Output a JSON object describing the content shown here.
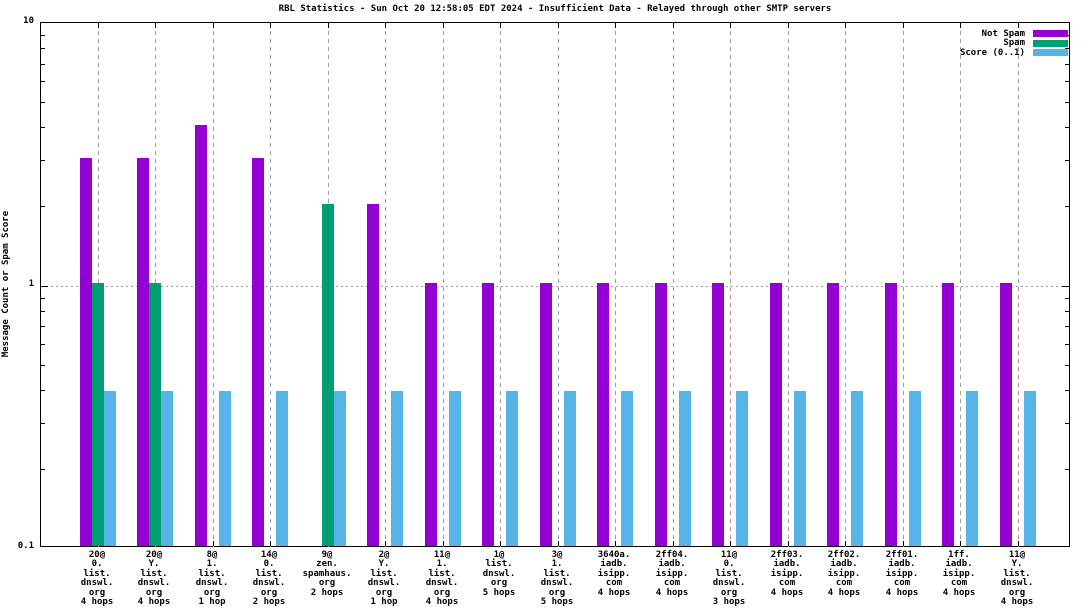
{
  "title": "RBL Statistics - Sun Oct 20 12:58:05 EDT 2024 - Insufficient Data - Relayed through other SMTP servers",
  "chart_data": {
    "type": "bar",
    "title": "RBL Statistics - Sun Oct 20 12:58:05 EDT 2024 - Insufficient Data - Relayed through other SMTP servers",
    "ylabel": "Message Count or Spam Score",
    "xlabel": "",
    "y_scale": "log",
    "ylim": [
      0.1,
      10
    ],
    "y_major_ticks": [
      0.1,
      1,
      10
    ],
    "y_major_tick_labels": [
      "0.1",
      "1",
      "10"
    ],
    "y_minor_ticks": [
      0.2,
      0.3,
      0.4,
      0.5,
      0.6,
      0.7,
      0.8,
      0.9,
      2,
      3,
      4,
      5,
      6,
      7,
      8,
      9
    ],
    "grid_vertical_per_category": true,
    "grid_horizontal_at": [
      1
    ],
    "legend_position": "top-right",
    "legend": [
      {
        "label": "Not Spam",
        "color": "#9400d3"
      },
      {
        "label": "Spam",
        "color": "#009e73"
      },
      {
        "label": "Score (0..1)",
        "color": "#56b4e9"
      }
    ],
    "categories": [
      [
        "20@",
        "0.",
        "list.",
        "dnswl.",
        "org",
        "4 hops"
      ],
      [
        "20@",
        "Y.",
        "list.",
        "dnswl.",
        "org",
        "4 hops"
      ],
      [
        "8@",
        "1.",
        "list.",
        "dnswl.",
        "org",
        "1 hop"
      ],
      [
        "14@",
        "0.",
        "list.",
        "dnswl.",
        "org",
        "2 hops"
      ],
      [
        "9@",
        "zen.",
        "spamhaus.",
        "org",
        "2 hops"
      ],
      [
        "2@",
        "Y.",
        "list.",
        "dnswl.",
        "org",
        "1 hop"
      ],
      [
        "11@",
        "1.",
        "list.",
        "dnswl.",
        "org",
        "4 hops"
      ],
      [
        "1@",
        "list.",
        "dnswl.",
        "org",
        "5 hops"
      ],
      [
        "3@",
        "1.",
        "list.",
        "dnswl.",
        "org",
        "5 hops"
      ],
      [
        "3640a.",
        "iadb.",
        "isipp.",
        "com",
        "4 hops"
      ],
      [
        "2ff04.",
        "iadb.",
        "isipp.",
        "com",
        "4 hops"
      ],
      [
        "11@",
        "0.",
        "list.",
        "dnswl.",
        "org",
        "3 hops"
      ],
      [
        "2ff03.",
        "iadb.",
        "isipp.",
        "com",
        "4 hops"
      ],
      [
        "2ff02.",
        "iadb.",
        "isipp.",
        "com",
        "4 hops"
      ],
      [
        "2ff01.",
        "iadb.",
        "isipp.",
        "com",
        "4 hops"
      ],
      [
        "1ff.",
        "iadb.",
        "isipp.",
        "com",
        "4 hops"
      ],
      [
        "11@",
        "Y.",
        "list.",
        "dnswl.",
        "org",
        "4 hops"
      ]
    ],
    "series": [
      {
        "name": "Not Spam",
        "color": "#9400d3",
        "values": [
          3,
          3,
          4,
          3,
          null,
          2,
          1,
          1,
          1,
          1,
          1,
          1,
          1,
          1,
          1,
          1,
          1
        ]
      },
      {
        "name": "Spam",
        "color": "#009e73",
        "values": [
          1,
          1,
          null,
          null,
          2,
          null,
          null,
          null,
          null,
          null,
          null,
          null,
          null,
          null,
          null,
          null,
          null
        ]
      },
      {
        "name": "Score (0..1)",
        "color": "#56b4e9",
        "values": [
          0.39,
          0.39,
          0.39,
          0.39,
          0.39,
          0.39,
          0.39,
          0.39,
          0.39,
          0.39,
          0.39,
          0.39,
          0.39,
          0.39,
          0.39,
          0.39,
          0.39
        ]
      }
    ]
  },
  "colors": {
    "not_spam": "#9400d3",
    "spam": "#009e73",
    "score": "#56b4e9",
    "grid": "#9e9e9e",
    "axis": "#000000",
    "background": "#ffffff"
  }
}
